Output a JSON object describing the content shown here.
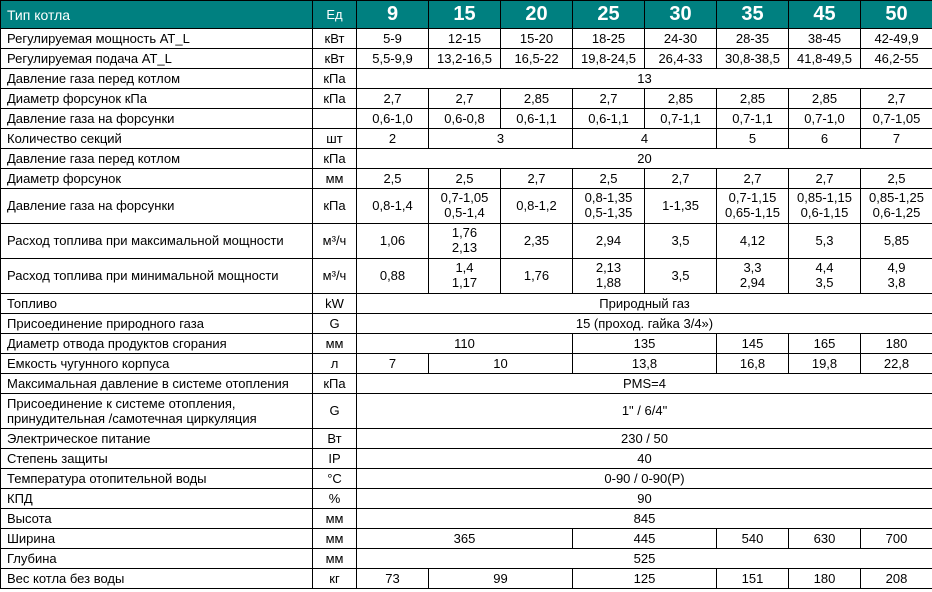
{
  "header": {
    "param_label": "Тип котла",
    "unit_label": "Ед",
    "cols": [
      "9",
      "15",
      "20",
      "25",
      "30",
      "35",
      "45",
      "50"
    ]
  },
  "r1": {
    "param": "Регулируемая мощность AT_L",
    "unit": "кВт",
    "v": [
      "5-9",
      "12-15",
      "15-20",
      "18-25",
      "24-30",
      "28-35",
      "38-45",
      "42-49,9"
    ]
  },
  "r2": {
    "param": "Регулируемая подача AT_L",
    "unit": "кВт",
    "v": [
      "5,5-9,9",
      "13,2-16,5",
      "16,5-22",
      "19,8-24,5",
      "26,4-33",
      "30,8-38,5",
      "41,8-49,5",
      "46,2-55"
    ]
  },
  "r3": {
    "param": "Давление газа перед котлом",
    "unit": "кПа",
    "span": "13"
  },
  "r4": {
    "param": "Диаметр форсунок кПа",
    "unit": "кПа",
    "v": [
      "2,7",
      "2,7",
      "2,85",
      "2,7",
      "2,85",
      "2,85",
      "2,85",
      "2,7"
    ]
  },
  "r5": {
    "param": "Давление газа на форсунки",
    "unit": "",
    "v": [
      "0,6-1,0",
      "0,6-0,8",
      "0,6-1,1",
      "0,6-1,1",
      "0,7-1,1",
      "0,7-1,1",
      "0,7-1,0",
      "0,7-1,05"
    ]
  },
  "r6": {
    "param": "Количество секций",
    "unit": "шт",
    "merge": [
      {
        "t": "2",
        "s": 1
      },
      {
        "t": "3",
        "s": 2
      },
      {
        "t": "4",
        "s": 2
      },
      {
        "t": "5",
        "s": 1
      },
      {
        "t": "6",
        "s": 1
      },
      {
        "t": "7",
        "s": 1
      }
    ]
  },
  "r7": {
    "param": "Давление газа перед котлом",
    "unit": "кПа",
    "span": "20"
  },
  "r8": {
    "param": "Диаметр форсунок",
    "unit": "мм",
    "v": [
      "2,5",
      "2,5",
      "2,7",
      "2,5",
      "2,7",
      "2,7",
      "2,7",
      "2,5"
    ]
  },
  "r9": {
    "param": "Давление газа на форсунки",
    "unit": "кПа",
    "v": [
      {
        "t": "0,8-1,4"
      },
      {
        "t": "0,7-1,05",
        "b": "0,5-1,4"
      },
      {
        "t": "0,8-1,2"
      },
      {
        "t": "0,8-1,35",
        "b": "0,5-1,35"
      },
      {
        "t": "1-1,35"
      },
      {
        "t": "0,7-1,15",
        "b": "0,65-1,15"
      },
      {
        "t": "0,85-1,15",
        "b": "0,6-1,15"
      },
      {
        "t": "0,85-1,25",
        "b": "0,6-1,25"
      }
    ]
  },
  "r10": {
    "param": "Расход топлива при максимальной мощности",
    "unit": "м³/ч",
    "v": [
      {
        "t": "1,06"
      },
      {
        "t": "1,76",
        "b": "2,13"
      },
      {
        "t": "2,35"
      },
      {
        "t": "2,94"
      },
      {
        "t": "3,5"
      },
      {
        "t": "4,12"
      },
      {
        "t": "5,3"
      },
      {
        "t": "5,85"
      }
    ]
  },
  "r11": {
    "param": "Расход топлива при минимальной мощности",
    "unit": "м³/ч",
    "v": [
      {
        "t": "0,88"
      },
      {
        "t": "1,4",
        "b": "1,17"
      },
      {
        "t": "1,76"
      },
      {
        "t": "2,13",
        "b": "1,88"
      },
      {
        "t": "3,5"
      },
      {
        "t": "3,3",
        "b": "2,94"
      },
      {
        "t": "4,4",
        "b": "3,5"
      },
      {
        "t": "4,9",
        "b": "3,8"
      }
    ]
  },
  "r12": {
    "param": "Топливо",
    "unit": "kW",
    "span": "Природный газ"
  },
  "r13": {
    "param": "Присоединение природного газа",
    "unit": "G",
    "span": "15 (проход. гайка 3/4»)"
  },
  "r14": {
    "param": "Диаметр отвода продуктов сгорания",
    "unit": "мм",
    "merge": [
      {
        "t": "110",
        "s": 3
      },
      {
        "t": "135",
        "s": 2
      },
      {
        "t": "145",
        "s": 1
      },
      {
        "t": "165",
        "s": 1
      },
      {
        "t": "180",
        "s": 1
      }
    ]
  },
  "r15": {
    "param": "Емкость чугунного корпуса",
    "unit": "л",
    "merge": [
      {
        "t": "7",
        "s": 1
      },
      {
        "t": "10",
        "s": 2
      },
      {
        "t": "13,8",
        "s": 2
      },
      {
        "t": "16,8",
        "s": 1
      },
      {
        "t": "19,8",
        "s": 1
      },
      {
        "t": "22,8",
        "s": 1
      }
    ]
  },
  "r16": {
    "param": "Максимальная давление в системе отопления",
    "unit": "кПа",
    "span": "PMS=4"
  },
  "r17": {
    "param": "Присоединение к системе отопления, принудительная /самотечная циркуляция",
    "unit": "G",
    "span": "1\" / 6/4\""
  },
  "r18": {
    "param": "Электрическое питание",
    "unit": "Вт",
    "span": "230 / 50"
  },
  "r19": {
    "param": "Степень защиты",
    "unit": "IP",
    "span": "40"
  },
  "r20": {
    "param": "Температура отопительной воды",
    "unit": "°C",
    "span": "0-90 / 0-90(P)"
  },
  "r21": {
    "param": "КПД",
    "unit": "%",
    "span": "90"
  },
  "r22": {
    "param": "Высота",
    "unit": "мм",
    "span": "845"
  },
  "r23": {
    "param": "Ширина",
    "unit": "мм",
    "merge": [
      {
        "t": "365",
        "s": 3
      },
      {
        "t": "445",
        "s": 2
      },
      {
        "t": "540",
        "s": 1
      },
      {
        "t": "630",
        "s": 1
      },
      {
        "t": "700",
        "s": 1
      }
    ]
  },
  "r24": {
    "param": "Глубина",
    "unit": "мм",
    "span": "525"
  },
  "r25": {
    "param": "Вес котла без воды",
    "unit": "кг",
    "merge": [
      {
        "t": "73",
        "s": 1
      },
      {
        "t": "99",
        "s": 2
      },
      {
        "t": "125",
        "s": 2
      },
      {
        "t": "151",
        "s": 1
      },
      {
        "t": "180",
        "s": 1
      },
      {
        "t": "208",
        "s": 1
      }
    ]
  },
  "colors": {
    "header_bg": "#008080",
    "header_fg": "#ffffff",
    "border": "#000000",
    "bg": "#ffffff"
  }
}
